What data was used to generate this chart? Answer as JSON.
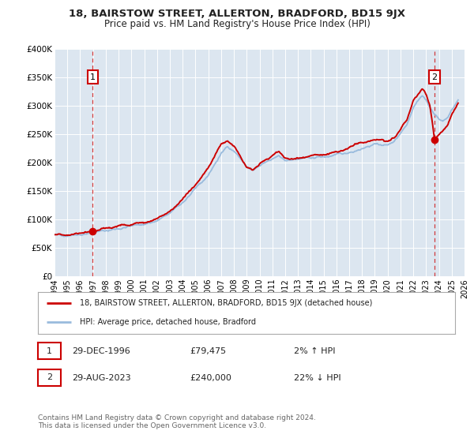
{
  "title": "18, BAIRSTOW STREET, ALLERTON, BRADFORD, BD15 9JX",
  "subtitle": "Price paid vs. HM Land Registry's House Price Index (HPI)",
  "background_color": "#ffffff",
  "plot_bg_color": "#dce6f0",
  "grid_color": "#ffffff",
  "x_min": 1994.0,
  "x_max": 2026.0,
  "y_min": 0,
  "y_max": 400000,
  "y_ticks": [
    0,
    50000,
    100000,
    150000,
    200000,
    250000,
    300000,
    350000,
    400000
  ],
  "y_tick_labels": [
    "£0",
    "£50K",
    "£100K",
    "£150K",
    "£200K",
    "£250K",
    "£300K",
    "£350K",
    "£400K"
  ],
  "sale1_x": 1996.99,
  "sale1_y": 79475,
  "sale1_label": "1",
  "sale1_date": "29-DEC-1996",
  "sale1_price": "£79,475",
  "sale1_hpi": "2% ↑ HPI",
  "sale2_x": 2023.66,
  "sale2_y": 240000,
  "sale2_label": "2",
  "sale2_date": "29-AUG-2023",
  "sale2_price": "£240,000",
  "sale2_hpi": "22% ↓ HPI",
  "red_line_color": "#cc0000",
  "blue_line_color": "#99bbdd",
  "legend_label_red": "18, BAIRSTOW STREET, ALLERTON, BRADFORD, BD15 9JX (detached house)",
  "legend_label_blue": "HPI: Average price, detached house, Bradford",
  "footer_line1": "Contains HM Land Registry data © Crown copyright and database right 2024.",
  "footer_line2": "This data is licensed under the Open Government Licence v3.0.",
  "x_ticks": [
    1994,
    1995,
    1996,
    1997,
    1998,
    1999,
    2000,
    2001,
    2002,
    2003,
    2004,
    2005,
    2006,
    2007,
    2008,
    2009,
    2010,
    2011,
    2012,
    2013,
    2014,
    2015,
    2016,
    2017,
    2018,
    2019,
    2020,
    2021,
    2022,
    2023,
    2024,
    2025,
    2026
  ]
}
